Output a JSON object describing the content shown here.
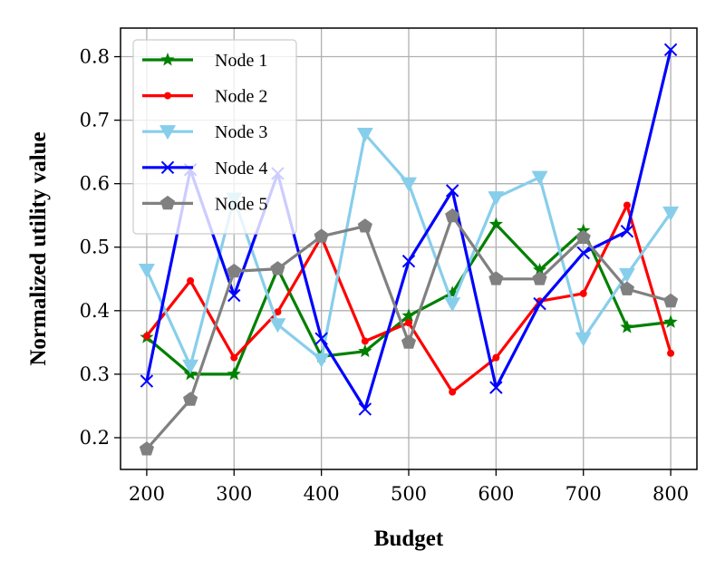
{
  "chart_data": {
    "type": "line",
    "title": "",
    "xlabel": "Budget",
    "ylabel": "Normalized utility value",
    "xlim": [
      170,
      830
    ],
    "ylim": [
      0.15,
      0.845
    ],
    "x_ticks": [
      200,
      300,
      400,
      500,
      600,
      700,
      800
    ],
    "y_ticks": [
      0.2,
      0.3,
      0.4,
      0.5,
      0.6,
      0.7,
      0.8
    ],
    "x_tick_labels": [
      "200",
      "300",
      "400",
      "500",
      "600",
      "700",
      "800"
    ],
    "y_tick_labels": [
      "0.2",
      "0.3",
      "0.4",
      "0.5",
      "0.6",
      "0.7",
      "0.8"
    ],
    "grid": true,
    "legend_position": "top-left",
    "x": [
      200,
      250,
      300,
      350,
      400,
      450,
      500,
      550,
      600,
      650,
      700,
      750,
      800
    ],
    "series": [
      {
        "name": "Node 1",
        "color": "#008000",
        "marker": "star",
        "values": [
          0.358,
          0.3,
          0.3,
          0.466,
          0.328,
          0.336,
          0.392,
          0.428,
          0.536,
          0.464,
          0.526,
          0.374,
          0.382
        ]
      },
      {
        "name": "Node 2",
        "color": "#ff0000",
        "marker": "dot",
        "values": [
          0.36,
          0.447,
          0.326,
          0.398,
          0.516,
          0.352,
          0.381,
          0.272,
          0.326,
          0.415,
          0.427,
          0.566,
          0.333
        ]
      },
      {
        "name": "Node 3",
        "color": "#87ceeb",
        "marker": "triangle-down",
        "values": [
          0.464,
          0.313,
          0.576,
          0.378,
          0.323,
          0.678,
          0.6,
          0.411,
          0.578,
          0.61,
          0.356,
          0.457,
          0.554
        ]
      },
      {
        "name": "Node 4",
        "color": "#0000ff",
        "marker": "x",
        "values": [
          0.289,
          0.622,
          0.424,
          0.616,
          0.356,
          0.245,
          0.478,
          0.589,
          0.279,
          0.411,
          0.491,
          0.525,
          0.811
        ]
      },
      {
        "name": "Node 5",
        "color": "#808080",
        "marker": "pentagon",
        "values": [
          0.182,
          0.26,
          0.462,
          0.466,
          0.517,
          0.533,
          0.35,
          0.549,
          0.45,
          0.45,
          0.515,
          0.434,
          0.415
        ]
      }
    ]
  }
}
